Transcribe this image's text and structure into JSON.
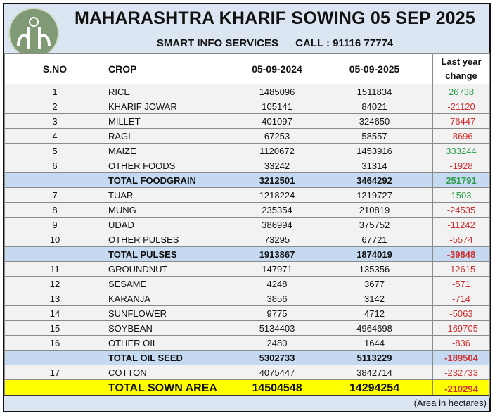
{
  "header": {
    "logo_text": "SIS",
    "title": "MAHARASHTRA KHARIF SOWING 05 SEP 2025",
    "company": "SMART INFO SERVICES",
    "phone": "CALL : 91116 77774"
  },
  "table": {
    "columns": [
      "S.NO",
      "CROP",
      "05-09-2024",
      "05-09-2025",
      "Last year change"
    ],
    "rows": [
      {
        "type": "row",
        "sno": "1",
        "crop": "RICE",
        "y2024": "1485096",
        "y2025": "1511834",
        "change": "26738"
      },
      {
        "type": "row",
        "sno": "2",
        "crop": "KHARIF JOWAR",
        "y2024": "105141",
        "y2025": "84021",
        "change": "-21120"
      },
      {
        "type": "row",
        "sno": "3",
        "crop": "MILLET",
        "y2024": "401097",
        "y2025": "324650",
        "change": "-76447"
      },
      {
        "type": "row",
        "sno": "4",
        "crop": "RAGI",
        "y2024": "67253",
        "y2025": "58557",
        "change": "-8696"
      },
      {
        "type": "row",
        "sno": "5",
        "crop": "MAIZE",
        "y2024": "1120672",
        "y2025": "1453916",
        "change": "333244"
      },
      {
        "type": "row",
        "sno": "6",
        "crop": "OTHER FOODS",
        "y2024": "33242",
        "y2025": "31314",
        "change": "-1928"
      },
      {
        "type": "total",
        "sno": "",
        "crop": "TOTAL FOODGRAIN",
        "y2024": "3212501",
        "y2025": "3464292",
        "change": "251791"
      },
      {
        "type": "row",
        "sno": "7",
        "crop": "TUAR",
        "y2024": "1218224",
        "y2025": "1219727",
        "change": "1503"
      },
      {
        "type": "row",
        "sno": "8",
        "crop": "MUNG",
        "y2024": "235354",
        "y2025": "210819",
        "change": "-24535"
      },
      {
        "type": "row",
        "sno": "9",
        "crop": "UDAD",
        "y2024": "386994",
        "y2025": "375752",
        "change": "-11242"
      },
      {
        "type": "row",
        "sno": "10",
        "crop": "OTHER PULSES",
        "y2024": "73295",
        "y2025": "67721",
        "change": "-5574"
      },
      {
        "type": "total",
        "sno": "",
        "crop": "TOTAL PULSES",
        "y2024": "1913867",
        "y2025": "1874019",
        "change": "-39848"
      },
      {
        "type": "row",
        "sno": "11",
        "crop": "GROUNDNUT",
        "y2024": "147971",
        "y2025": "135356",
        "change": "-12615"
      },
      {
        "type": "row",
        "sno": "12",
        "crop": "SESAME",
        "y2024": "4248",
        "y2025": "3677",
        "change": "-571"
      },
      {
        "type": "row",
        "sno": "13",
        "crop": "KARANJA",
        "y2024": "3856",
        "y2025": "3142",
        "change": "-714"
      },
      {
        "type": "row",
        "sno": "14",
        "crop": "SUNFLOWER",
        "y2024": "9775",
        "y2025": "4712",
        "change": "-5063"
      },
      {
        "type": "row",
        "sno": "15",
        "crop": "SOYBEAN",
        "y2024": "5134403",
        "y2025": "4964698",
        "change": "-169705"
      },
      {
        "type": "row",
        "sno": "16",
        "crop": "OTHER OIL",
        "y2024": "2480",
        "y2025": "1644",
        "change": "-836"
      },
      {
        "type": "total",
        "sno": "",
        "crop": "TOTAL OIL SEED",
        "y2024": "5302733",
        "y2025": "5113229",
        "change": "-189504"
      },
      {
        "type": "row",
        "sno": "17",
        "crop": "COTTON",
        "y2024": "4075447",
        "y2025": "3842714",
        "change": "-232733"
      },
      {
        "type": "grand",
        "sno": "",
        "crop": "TOTAL SOWN AREA",
        "y2024": "14504548",
        "y2025": "14294254",
        "change": "-210294"
      }
    ]
  },
  "footer": {
    "note": "(Area in hectares)"
  },
  "colors": {
    "positive": "#2e9e4a",
    "negative": "#d03030",
    "total_row": "#c5d9f1",
    "grand_row": "#ffff00",
    "header_bg": "#dce6f2"
  }
}
